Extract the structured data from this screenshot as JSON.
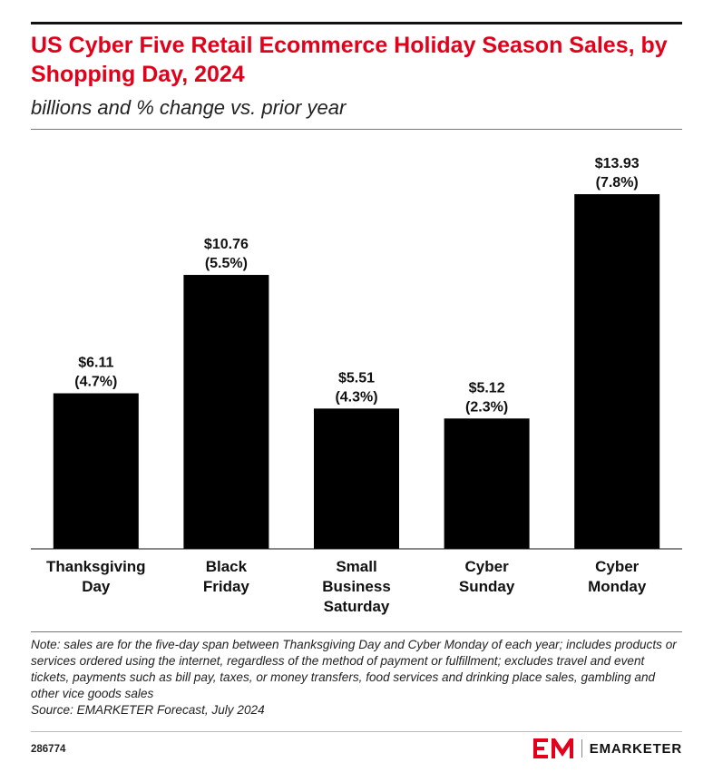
{
  "chart_data": {
    "type": "bar",
    "title": "US Cyber Five Retail Ecommerce Holiday Season Sales, by Shopping Day, 2024",
    "subtitle": "billions and % change vs. prior year",
    "categories": [
      [
        "Thanksgiving",
        "Day"
      ],
      [
        "Black",
        "Friday"
      ],
      [
        "Small",
        "Business",
        "Saturday"
      ],
      [
        "Cyber",
        "Sunday"
      ],
      [
        "Cyber",
        "Monday"
      ]
    ],
    "values": [
      6.11,
      10.76,
      5.51,
      5.12,
      13.93
    ],
    "value_labels": [
      "$6.11",
      "$10.76",
      "$5.51",
      "$5.12",
      "$13.93"
    ],
    "change_labels": [
      "(4.7%)",
      "(5.5%)",
      "(4.3%)",
      "(2.3%)",
      "(7.8%)"
    ],
    "ylim": [
      0,
      15.5
    ],
    "grid": false,
    "bar_color": "#000000"
  },
  "note": "Note: sales are for the five-day span between Thanksgiving Day and Cyber Monday of each year; includes products or services ordered using the internet, regardless of the method of payment or fulfillment; excludes travel and event tickets, payments such as bill pay, taxes, or money transfers, food services and drinking place sales, gambling and other vice goods sales",
  "source": "Source: EMARKETER Forecast, July 2024",
  "footer": {
    "chart_id": "286774",
    "logo_text": "EMARKETER",
    "logo_icon": "em-logo-icon",
    "brand_color": "#e3001b"
  }
}
